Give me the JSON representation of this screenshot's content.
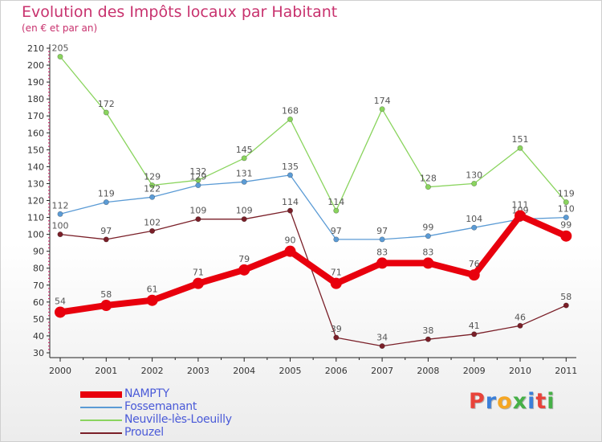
{
  "title": "Evolution des Impôts locaux par Habitant",
  "subtitle": "(en € et par an)",
  "brand": {
    "letters": [
      "P",
      "r",
      "o",
      "x",
      "i",
      "t",
      "i"
    ],
    "colors": [
      "#e8433a",
      "#3b7fd9",
      "#f5a623",
      "#46b047",
      "#3b7fd9",
      "#e8433a",
      "#46b047"
    ]
  },
  "chart_data": {
    "type": "line",
    "title": "Evolution des Impôts locaux par Habitant",
    "subtitle": "(en € et par an)",
    "x": [
      "2000",
      "2001",
      "2002",
      "2003",
      "2004",
      "2005",
      "2006",
      "2007",
      "2008",
      "2009",
      "2010",
      "2011"
    ],
    "y_ticks": [
      "30",
      "40",
      "50",
      "60",
      "70",
      "80",
      "90",
      "100",
      "110",
      "120",
      "130",
      "140",
      "150",
      "160",
      "170",
      "180",
      "190",
      "200",
      "210"
    ],
    "ylim": [
      30,
      210
    ],
    "grid": false,
    "legend_position": "bottom-left",
    "series": [
      {
        "name": "Prouzel",
        "color": "#7a1f28",
        "values": [
          100,
          97,
          102,
          109,
          109,
          114,
          39,
          34,
          38,
          41,
          46,
          58
        ],
        "labels": [
          "100",
          "97",
          "102",
          "109",
          "109",
          "114",
          "39",
          "34",
          "38",
          "41",
          "46",
          "58"
        ]
      },
      {
        "name": "Neuville-lès-Loeuilly",
        "color": "#8ad45e",
        "values": [
          205,
          172,
          129,
          132,
          145,
          168,
          114,
          174,
          128,
          130,
          151,
          119
        ],
        "labels": [
          "205",
          "172",
          "129",
          "132",
          "145",
          "168",
          "114",
          "174",
          "128",
          "130",
          "151",
          "119"
        ]
      },
      {
        "name": "Fossemanant",
        "color": "#5b9bd5",
        "values": [
          112,
          119,
          122,
          129,
          131,
          135,
          97,
          97,
          99,
          104,
          109,
          110
        ],
        "labels": [
          "112",
          "119",
          "122",
          "129",
          "131",
          "135",
          "97",
          "97",
          "99",
          "104",
          "109",
          "110"
        ]
      },
      {
        "name": "NAMPTY",
        "color": "#e8000d",
        "values": [
          54,
          58,
          61,
          71,
          79,
          90,
          71,
          83,
          83,
          76,
          111,
          99
        ],
        "labels": [
          "54",
          "58",
          "61",
          "71",
          "79",
          "90",
          "71",
          "83",
          "83",
          "76",
          "111",
          "99"
        ]
      }
    ],
    "legend": [
      "NAMPTY",
      "Fossemanant",
      "Neuville-lès-Loeuilly",
      "Prouzel"
    ]
  }
}
